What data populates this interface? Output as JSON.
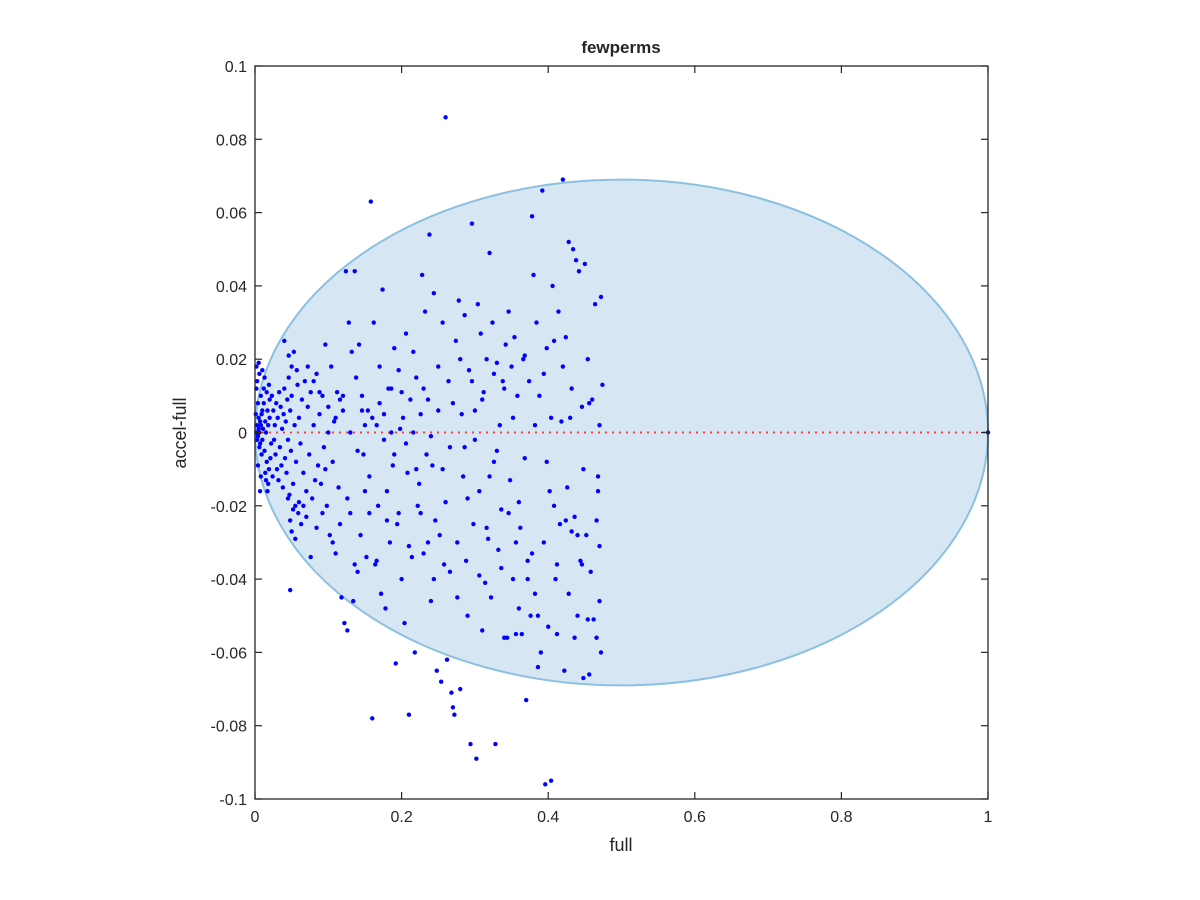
{
  "chart_data": {
    "type": "scatter",
    "title": "fewperms",
    "xlabel": "full",
    "ylabel": "accel-full",
    "xlim": [
      0,
      1
    ],
    "ylim": [
      -0.1,
      0.1
    ],
    "x_ticks": [
      0,
      0.2,
      0.4,
      0.6,
      0.8,
      1
    ],
    "x_tick_labels": [
      "0",
      "0.2",
      "0.4",
      "0.6",
      "0.8",
      "1"
    ],
    "y_ticks": [
      -0.1,
      -0.08,
      -0.06,
      -0.04,
      -0.02,
      0,
      0.02,
      0.04,
      0.06,
      0.08,
      0.1
    ],
    "y_tick_labels": [
      "-0.1",
      "-0.08",
      "-0.06",
      "-0.04",
      "-0.02",
      "0",
      "0.02",
      "0.04",
      "0.06",
      "0.08",
      "0.1"
    ],
    "grid": false,
    "legend": false,
    "colors": {
      "points": "#0000ff",
      "ellipse_fill": "#d6e7f3",
      "ellipse_edge": "#8cc0e2",
      "reference_line": "#ff4040",
      "axes": "#262626"
    },
    "ellipse": {
      "x_range": [
        0,
        1
      ],
      "y_range": [
        -0.069,
        0.069
      ],
      "center": [
        0.5,
        0
      ]
    },
    "reference_line": {
      "y": 0,
      "x_range": [
        0,
        1
      ],
      "style": "dotted"
    },
    "points": [
      [
        0.001,
        0.005
      ],
      [
        0.002,
        0.012
      ],
      [
        0.003,
        -0.002
      ],
      [
        0.004,
        0.008
      ],
      [
        0.005,
        0.001
      ],
      [
        0.006,
        -0.004
      ],
      [
        0.007,
        0.003
      ],
      [
        0.008,
        0.01
      ],
      [
        0.009,
        -0.006
      ],
      [
        0.01,
        0.006
      ],
      [
        0.002,
        0.0
      ],
      [
        0.003,
        0.002
      ],
      [
        0.004,
        -0.001
      ],
      [
        0.005,
        0.004
      ],
      [
        0.006,
        0.0
      ],
      [
        0.007,
        -0.003
      ],
      [
        0.008,
        0.002
      ],
      [
        0.009,
        0.005
      ],
      [
        0.01,
        -0.002
      ],
      [
        0.011,
        0.001
      ],
      [
        0.012,
        0.008
      ],
      [
        0.013,
        -0.005
      ],
      [
        0.014,
        0.003
      ],
      [
        0.015,
        0.0
      ],
      [
        0.016,
        -0.008
      ],
      [
        0.017,
        0.006
      ],
      [
        0.018,
        0.002
      ],
      [
        0.019,
        -0.01
      ],
      [
        0.02,
        0.004
      ],
      [
        0.022,
        -0.003
      ],
      [
        0.003,
        0.014
      ],
      [
        0.004,
        -0.009
      ],
      [
        0.006,
        0.016
      ],
      [
        0.008,
        -0.012
      ],
      [
        0.012,
        0.012
      ],
      [
        0.014,
        -0.011
      ],
      [
        0.016,
        0.011
      ],
      [
        0.018,
        -0.014
      ],
      [
        0.02,
        0.009
      ],
      [
        0.021,
        -0.007
      ],
      [
        0.002,
        0.018
      ],
      [
        0.005,
        0.019
      ],
      [
        0.007,
        -0.016
      ],
      [
        0.01,
        0.017
      ],
      [
        0.013,
        0.015
      ],
      [
        0.015,
        -0.013
      ],
      [
        0.017,
        -0.016
      ],
      [
        0.019,
        0.013
      ],
      [
        0.023,
        0.01
      ],
      [
        0.024,
        -0.012
      ],
      [
        0.025,
        0.006
      ],
      [
        0.026,
        -0.002
      ],
      [
        0.027,
        0.002
      ],
      [
        0.028,
        -0.006
      ],
      [
        0.029,
        0.008
      ],
      [
        0.03,
        -0.01
      ],
      [
        0.031,
        0.004
      ],
      [
        0.032,
        -0.013
      ],
      [
        0.033,
        0.011
      ],
      [
        0.034,
        -0.004
      ],
      [
        0.035,
        0.007
      ],
      [
        0.036,
        -0.009
      ],
      [
        0.037,
        0.001
      ],
      [
        0.038,
        -0.015
      ],
      [
        0.039,
        0.005
      ],
      [
        0.04,
        0.012
      ],
      [
        0.041,
        -0.007
      ],
      [
        0.042,
        0.003
      ],
      [
        0.043,
        -0.011
      ],
      [
        0.044,
        0.009
      ],
      [
        0.045,
        -0.002
      ],
      [
        0.046,
        0.015
      ],
      [
        0.047,
        -0.017
      ],
      [
        0.048,
        0.006
      ],
      [
        0.049,
        -0.005
      ],
      [
        0.05,
        0.01
      ],
      [
        0.052,
        -0.014
      ],
      [
        0.054,
        0.002
      ],
      [
        0.056,
        -0.008
      ],
      [
        0.058,
        0.013
      ],
      [
        0.04,
        0.025
      ],
      [
        0.046,
        0.021
      ],
      [
        0.05,
        0.018
      ],
      [
        0.053,
        0.022
      ],
      [
        0.055,
        -0.02
      ],
      [
        0.057,
        0.017
      ],
      [
        0.059,
        -0.022
      ],
      [
        0.06,
        0.004
      ],
      [
        0.062,
        -0.003
      ],
      [
        0.064,
        0.009
      ],
      [
        0.066,
        -0.011
      ],
      [
        0.068,
        0.014
      ],
      [
        0.07,
        -0.016
      ],
      [
        0.072,
        0.007
      ],
      [
        0.074,
        -0.006
      ],
      [
        0.076,
        0.011
      ],
      [
        0.078,
        -0.018
      ],
      [
        0.08,
        0.002
      ],
      [
        0.082,
        -0.013
      ],
      [
        0.084,
        0.016
      ],
      [
        0.045,
        -0.018
      ],
      [
        0.048,
        -0.024
      ],
      [
        0.05,
        -0.027
      ],
      [
        0.052,
        -0.021
      ],
      [
        0.055,
        -0.029
      ],
      [
        0.048,
        -0.043
      ],
      [
        0.06,
        -0.019
      ],
      [
        0.063,
        -0.025
      ],
      [
        0.066,
        -0.02
      ],
      [
        0.07,
        -0.023
      ],
      [
        0.086,
        -0.009
      ],
      [
        0.088,
        0.005
      ],
      [
        0.09,
        -0.014
      ],
      [
        0.092,
        0.01
      ],
      [
        0.094,
        -0.004
      ],
      [
        0.096,
        0.024
      ],
      [
        0.098,
        -0.02
      ],
      [
        0.1,
        0.0
      ],
      [
        0.102,
        -0.028
      ],
      [
        0.104,
        0.018
      ],
      [
        0.106,
        -0.008
      ],
      [
        0.108,
        0.003
      ],
      [
        0.11,
        -0.033
      ],
      [
        0.112,
        0.011
      ],
      [
        0.114,
        -0.015
      ],
      [
        0.116,
        0.009
      ],
      [
        0.118,
        -0.045
      ],
      [
        0.12,
        0.006
      ],
      [
        0.122,
        -0.052
      ],
      [
        0.124,
        0.044
      ],
      [
        0.126,
        -0.054
      ],
      [
        0.128,
        0.03
      ],
      [
        0.13,
        -0.022
      ],
      [
        0.132,
        0.022
      ],
      [
        0.134,
        -0.046
      ],
      [
        0.136,
        0.044
      ],
      [
        0.138,
        0.015
      ],
      [
        0.14,
        -0.038
      ],
      [
        0.142,
        0.024
      ],
      [
        0.144,
        -0.028
      ],
      [
        0.146,
        0.01
      ],
      [
        0.148,
        -0.006
      ],
      [
        0.15,
        0.002
      ],
      [
        0.152,
        -0.034
      ],
      [
        0.154,
        0.006
      ],
      [
        0.156,
        -0.012
      ],
      [
        0.158,
        0.063
      ],
      [
        0.16,
        -0.078
      ],
      [
        0.162,
        0.03
      ],
      [
        0.164,
        -0.036
      ],
      [
        0.166,
        0.002
      ],
      [
        0.168,
        -0.02
      ],
      [
        0.17,
        0.018
      ],
      [
        0.172,
        -0.044
      ],
      [
        0.174,
        0.039
      ],
      [
        0.176,
        0.005
      ],
      [
        0.178,
        -0.048
      ],
      [
        0.18,
        -0.016
      ],
      [
        0.182,
        0.012
      ],
      [
        0.184,
        -0.03
      ],
      [
        0.186,
        0.0
      ],
      [
        0.188,
        -0.009
      ],
      [
        0.19,
        0.023
      ],
      [
        0.192,
        -0.063
      ],
      [
        0.194,
        -0.025
      ],
      [
        0.196,
        0.017
      ],
      [
        0.198,
        0.001
      ],
      [
        0.2,
        -0.04
      ],
      [
        0.202,
        0.004
      ],
      [
        0.204,
        -0.052
      ],
      [
        0.206,
        0.027
      ],
      [
        0.208,
        -0.011
      ],
      [
        0.21,
        -0.077
      ],
      [
        0.212,
        0.009
      ],
      [
        0.214,
        -0.034
      ],
      [
        0.216,
        0.0
      ],
      [
        0.218,
        -0.06
      ],
      [
        0.22,
        0.015
      ],
      [
        0.222,
        -0.02
      ],
      [
        0.224,
        -0.014
      ],
      [
        0.226,
        0.005
      ],
      [
        0.228,
        0.043
      ],
      [
        0.23,
        -0.033
      ],
      [
        0.232,
        0.033
      ],
      [
        0.234,
        -0.006
      ],
      [
        0.236,
        0.009
      ],
      [
        0.238,
        0.054
      ],
      [
        0.24,
        -0.046
      ],
      [
        0.242,
        -0.009
      ],
      [
        0.244,
        0.038
      ],
      [
        0.246,
        -0.024
      ],
      [
        0.248,
        -0.065
      ],
      [
        0.25,
        0.006
      ],
      [
        0.252,
        -0.028
      ],
      [
        0.254,
        -0.068
      ],
      [
        0.256,
        0.03
      ],
      [
        0.258,
        -0.036
      ],
      [
        0.26,
        0.086
      ],
      [
        0.262,
        -0.062
      ],
      [
        0.264,
        0.014
      ],
      [
        0.266,
        -0.004
      ],
      [
        0.268,
        -0.071
      ],
      [
        0.27,
        -0.075
      ],
      [
        0.272,
        -0.077
      ],
      [
        0.274,
        0.025
      ],
      [
        0.276,
        -0.045
      ],
      [
        0.278,
        0.036
      ],
      [
        0.28,
        -0.07
      ],
      [
        0.282,
        0.005
      ],
      [
        0.284,
        -0.012
      ],
      [
        0.286,
        0.032
      ],
      [
        0.288,
        -0.035
      ],
      [
        0.29,
        -0.05
      ],
      [
        0.292,
        0.017
      ],
      [
        0.294,
        -0.085
      ],
      [
        0.296,
        0.057
      ],
      [
        0.298,
        -0.025
      ],
      [
        0.3,
        0.006
      ],
      [
        0.302,
        -0.089
      ],
      [
        0.304,
        0.035
      ],
      [
        0.306,
        -0.016
      ],
      [
        0.308,
        0.027
      ],
      [
        0.31,
        -0.054
      ],
      [
        0.312,
        0.011
      ],
      [
        0.314,
        -0.041
      ],
      [
        0.316,
        0.02
      ],
      [
        0.318,
        -0.029
      ],
      [
        0.32,
        0.049
      ],
      [
        0.322,
        -0.045
      ],
      [
        0.324,
        0.03
      ],
      [
        0.326,
        -0.008
      ],
      [
        0.328,
        -0.085
      ],
      [
        0.33,
        0.019
      ],
      [
        0.332,
        -0.032
      ],
      [
        0.334,
        0.002
      ],
      [
        0.336,
        -0.021
      ],
      [
        0.338,
        0.014
      ],
      [
        0.34,
        -0.056
      ],
      [
        0.342,
        0.024
      ],
      [
        0.344,
        -0.056
      ],
      [
        0.346,
        0.033
      ],
      [
        0.348,
        -0.013
      ],
      [
        0.35,
        0.018
      ],
      [
        0.352,
        -0.04
      ],
      [
        0.354,
        0.026
      ],
      [
        0.356,
        -0.055
      ],
      [
        0.358,
        0.01
      ],
      [
        0.36,
        -0.048
      ],
      [
        0.362,
        -0.026
      ],
      [
        0.364,
        -0.055
      ],
      [
        0.366,
        0.02
      ],
      [
        0.368,
        -0.007
      ],
      [
        0.37,
        -0.073
      ],
      [
        0.372,
        -0.035
      ],
      [
        0.374,
        0.014
      ],
      [
        0.376,
        -0.05
      ],
      [
        0.378,
        0.059
      ],
      [
        0.38,
        0.043
      ],
      [
        0.382,
        -0.044
      ],
      [
        0.384,
        0.03
      ],
      [
        0.386,
        -0.064
      ],
      [
        0.388,
        0.01
      ],
      [
        0.39,
        -0.06
      ],
      [
        0.392,
        0.066
      ],
      [
        0.394,
        -0.03
      ],
      [
        0.396,
        -0.096
      ],
      [
        0.398,
        0.023
      ],
      [
        0.4,
        -0.053
      ],
      [
        0.402,
        -0.016
      ],
      [
        0.404,
        -0.095
      ],
      [
        0.406,
        0.04
      ],
      [
        0.408,
        0.025
      ],
      [
        0.41,
        -0.04
      ],
      [
        0.412,
        -0.055
      ],
      [
        0.414,
        0.033
      ],
      [
        0.416,
        -0.025
      ],
      [
        0.418,
        0.003
      ],
      [
        0.42,
        0.069
      ],
      [
        0.422,
        -0.065
      ],
      [
        0.424,
        0.026
      ],
      [
        0.426,
        -0.015
      ],
      [
        0.428,
        0.052
      ],
      [
        0.43,
        0.004
      ],
      [
        0.432,
        -0.027
      ],
      [
        0.434,
        0.05
      ],
      [
        0.436,
        -0.023
      ],
      [
        0.438,
        0.047
      ],
      [
        0.44,
        -0.05
      ],
      [
        0.442,
        0.044
      ],
      [
        0.444,
        -0.035
      ],
      [
        0.446,
        0.007
      ],
      [
        0.448,
        -0.067
      ],
      [
        0.45,
        0.046
      ],
      [
        0.452,
        -0.028
      ],
      [
        0.454,
        0.02
      ],
      [
        0.456,
        -0.066
      ],
      [
        0.458,
        -0.038
      ],
      [
        0.46,
        0.009
      ],
      [
        0.462,
        -0.051
      ],
      [
        0.464,
        0.035
      ],
      [
        0.466,
        -0.056
      ],
      [
        0.468,
        -0.012
      ],
      [
        0.47,
        0.002
      ],
      [
        0.472,
        -0.06
      ],
      [
        0.474,
        0.013
      ],
      [
        0.468,
        -0.016
      ],
      [
        0.47,
        -0.031
      ],
      [
        0.472,
        0.037
      ],
      [
        0.466,
        -0.024
      ],
      [
        0.47,
        -0.046
      ],
      [
        0.454,
        -0.051
      ],
      [
        0.456,
        0.008
      ],
      [
        0.448,
        -0.01
      ],
      [
        0.446,
        -0.036
      ],
      [
        0.44,
        -0.028
      ],
      [
        0.436,
        -0.056
      ],
      [
        0.432,
        0.012
      ],
      [
        0.428,
        -0.044
      ],
      [
        0.424,
        -0.024
      ],
      [
        0.42,
        0.018
      ],
      [
        0.412,
        -0.036
      ],
      [
        0.408,
        -0.02
      ],
      [
        0.404,
        0.004
      ],
      [
        0.398,
        -0.008
      ],
      [
        0.394,
        0.016
      ],
      [
        0.386,
        -0.05
      ],
      [
        0.382,
        0.002
      ],
      [
        0.378,
        -0.033
      ],
      [
        0.372,
        -0.04
      ],
      [
        0.368,
        0.021
      ],
      [
        0.36,
        -0.019
      ],
      [
        0.356,
        -0.03
      ],
      [
        0.352,
        0.004
      ],
      [
        0.346,
        -0.022
      ],
      [
        0.34,
        0.012
      ],
      [
        0.336,
        -0.037
      ],
      [
        0.33,
        -0.005
      ],
      [
        0.326,
        0.016
      ],
      [
        0.32,
        -0.012
      ],
      [
        0.316,
        -0.026
      ],
      [
        0.31,
        0.009
      ],
      [
        0.306,
        -0.039
      ],
      [
        0.3,
        -0.002
      ],
      [
        0.296,
        0.014
      ],
      [
        0.29,
        -0.018
      ],
      [
        0.286,
        -0.004
      ],
      [
        0.28,
        0.02
      ],
      [
        0.276,
        -0.03
      ],
      [
        0.27,
        0.008
      ],
      [
        0.266,
        -0.038
      ],
      [
        0.26,
        -0.019
      ],
      [
        0.256,
        -0.01
      ],
      [
        0.25,
        0.018
      ],
      [
        0.244,
        -0.04
      ],
      [
        0.24,
        -0.001
      ],
      [
        0.236,
        -0.03
      ],
      [
        0.23,
        0.012
      ],
      [
        0.226,
        -0.022
      ],
      [
        0.22,
        -0.01
      ],
      [
        0.216,
        0.022
      ],
      [
        0.21,
        -0.031
      ],
      [
        0.206,
        -0.003
      ],
      [
        0.2,
        0.011
      ],
      [
        0.196,
        -0.022
      ],
      [
        0.19,
        -0.006
      ],
      [
        0.186,
        0.012
      ],
      [
        0.18,
        -0.024
      ],
      [
        0.176,
        -0.002
      ],
      [
        0.17,
        0.008
      ],
      [
        0.166,
        -0.035
      ],
      [
        0.16,
        0.004
      ],
      [
        0.156,
        -0.022
      ],
      [
        0.15,
        -0.016
      ],
      [
        0.146,
        0.006
      ],
      [
        0.14,
        -0.005
      ],
      [
        0.136,
        -0.036
      ],
      [
        0.13,
        0.0
      ],
      [
        0.126,
        -0.018
      ],
      [
        0.12,
        0.01
      ],
      [
        0.116,
        -0.025
      ],
      [
        0.11,
        0.004
      ],
      [
        0.106,
        -0.03
      ],
      [
        0.1,
        0.007
      ],
      [
        0.096,
        -0.01
      ],
      [
        0.092,
        -0.022
      ],
      [
        0.088,
        0.011
      ],
      [
        0.084,
        -0.026
      ],
      [
        0.08,
        0.014
      ],
      [
        0.076,
        -0.034
      ],
      [
        0.072,
        0.018
      ],
      [
        1.0,
        0.0
      ]
    ]
  }
}
